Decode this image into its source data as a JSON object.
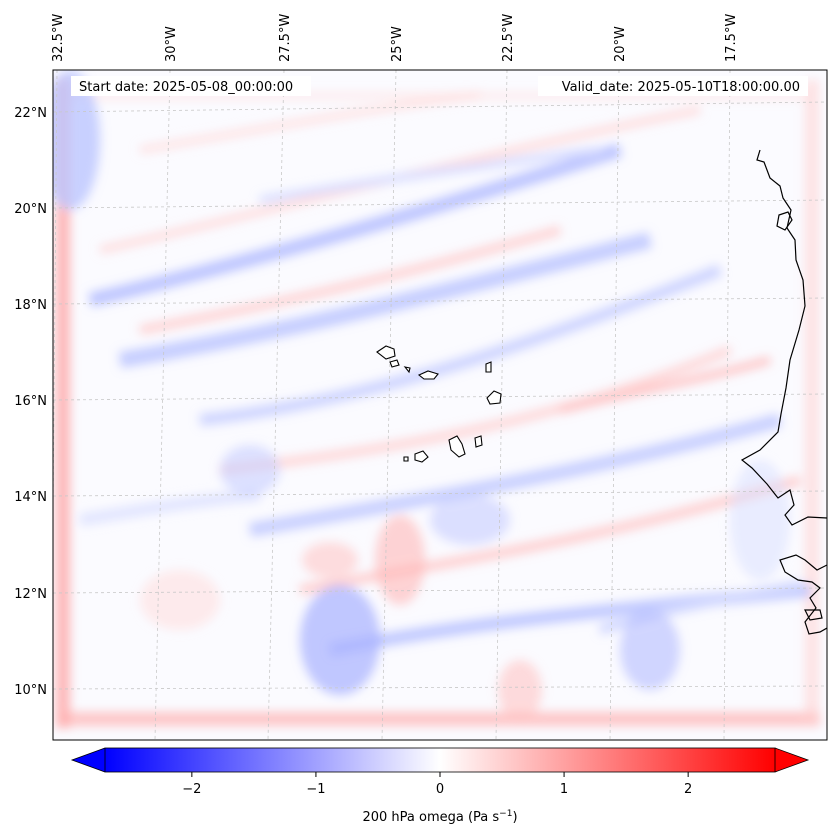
{
  "map": {
    "start_date_label": "Start date: 2025-05-08_00:00:00",
    "valid_date_label": "Valid_date: 2025-05-10T18:00:00.00",
    "lon_labels": [
      "32.5°W",
      "30°W",
      "27.5°W",
      "25°W",
      "22.5°W",
      "20°W",
      "17.5°W"
    ],
    "lat_labels": [
      "22°N",
      "20°N",
      "18°N",
      "16°N",
      "14°N",
      "12°N",
      "10°N"
    ],
    "coastline_color": "#000000",
    "gridlines": true
  },
  "colorbar": {
    "label_prefix": "200 hPa omega (Pa s",
    "label_exp": "−1",
    "label_suffix": ")",
    "ticks": [
      "−2",
      "−1",
      "0",
      "1",
      "2"
    ],
    "tick_values": [
      -2,
      -1,
      0,
      1,
      2
    ],
    "range": [
      -2.7,
      2.7
    ],
    "colormap": "bwr",
    "extend": "both",
    "min_color": "#0000ff",
    "mid_color": "#ffffff",
    "max_color": "#ff0000"
  }
}
